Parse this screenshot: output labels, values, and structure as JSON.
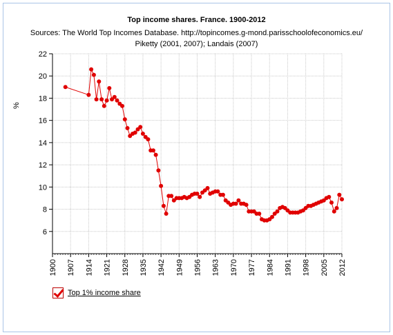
{
  "chart_data": {
    "type": "line",
    "title": "Top income shares. France. 1900-2012",
    "subtitle_lines": [
      "Sources: The World Top Incomes Database. http://topincomes.g-mond.parisschoolofeconomics.eu/",
      "Piketty (2001, 2007); Landais (2007)"
    ],
    "ylabel": "%",
    "xlabel": "",
    "xlim": [
      1900,
      2012
    ],
    "ylim": [
      4,
      22
    ],
    "y_ticks": [
      6,
      8,
      10,
      12,
      14,
      16,
      18,
      20,
      22
    ],
    "x_ticks": [
      1900,
      1907,
      1914,
      1921,
      1928,
      1935,
      1942,
      1949,
      1956,
      1963,
      1970,
      1977,
      1984,
      1991,
      1998,
      2005,
      2012
    ],
    "grid": true,
    "series": [
      {
        "name": "Top 1% income share",
        "color": "#e00000",
        "points": [
          [
            1905,
            19.0
          ],
          [
            1914,
            18.3
          ],
          [
            1915,
            20.6
          ],
          [
            1916,
            20.1
          ],
          [
            1917,
            17.9
          ],
          [
            1918,
            19.5
          ],
          [
            1919,
            17.9
          ],
          [
            1920,
            17.3
          ],
          [
            1921,
            17.8
          ],
          [
            1922,
            18.9
          ],
          [
            1923,
            17.9
          ],
          [
            1924,
            18.1
          ],
          [
            1925,
            17.8
          ],
          [
            1926,
            17.5
          ],
          [
            1927,
            17.3
          ],
          [
            1928,
            16.1
          ],
          [
            1929,
            15.3
          ],
          [
            1930,
            14.6
          ],
          [
            1931,
            14.8
          ],
          [
            1932,
            14.9
          ],
          [
            1933,
            15.2
          ],
          [
            1934,
            15.4
          ],
          [
            1935,
            14.8
          ],
          [
            1936,
            14.5
          ],
          [
            1937,
            14.3
          ],
          [
            1938,
            13.3
          ],
          [
            1939,
            13.3
          ],
          [
            1940,
            12.9
          ],
          [
            1941,
            11.5
          ],
          [
            1942,
            10.1
          ],
          [
            1943,
            8.3
          ],
          [
            1944,
            7.6
          ],
          [
            1945,
            9.2
          ],
          [
            1946,
            9.2
          ],
          [
            1947,
            8.8
          ],
          [
            1948,
            9.0
          ],
          [
            1949,
            9.0
          ],
          [
            1950,
            9.0
          ],
          [
            1951,
            9.1
          ],
          [
            1952,
            9.0
          ],
          [
            1953,
            9.1
          ],
          [
            1954,
            9.3
          ],
          [
            1955,
            9.4
          ],
          [
            1956,
            9.4
          ],
          [
            1957,
            9.1
          ],
          [
            1958,
            9.5
          ],
          [
            1959,
            9.7
          ],
          [
            1960,
            9.9
          ],
          [
            1961,
            9.4
          ],
          [
            1962,
            9.5
          ],
          [
            1963,
            9.6
          ],
          [
            1964,
            9.6
          ],
          [
            1965,
            9.3
          ],
          [
            1966,
            9.3
          ],
          [
            1967,
            8.8
          ],
          [
            1968,
            8.6
          ],
          [
            1969,
            8.4
          ],
          [
            1970,
            8.5
          ],
          [
            1971,
            8.5
          ],
          [
            1972,
            8.8
          ],
          [
            1973,
            8.5
          ],
          [
            1974,
            8.5
          ],
          [
            1975,
            8.4
          ],
          [
            1976,
            7.8
          ],
          [
            1977,
            7.8
          ],
          [
            1978,
            7.8
          ],
          [
            1979,
            7.6
          ],
          [
            1980,
            7.6
          ],
          [
            1981,
            7.1
          ],
          [
            1982,
            7.0
          ],
          [
            1983,
            7.0
          ],
          [
            1984,
            7.1
          ],
          [
            1985,
            7.3
          ],
          [
            1986,
            7.6
          ],
          [
            1987,
            7.8
          ],
          [
            1988,
            8.1
          ],
          [
            1989,
            8.2
          ],
          [
            1990,
            8.1
          ],
          [
            1991,
            7.9
          ],
          [
            1992,
            7.7
          ],
          [
            1993,
            7.7
          ],
          [
            1994,
            7.7
          ],
          [
            1995,
            7.7
          ],
          [
            1996,
            7.8
          ],
          [
            1997,
            7.9
          ],
          [
            1998,
            8.1
          ],
          [
            1999,
            8.3
          ],
          [
            2000,
            8.3
          ],
          [
            2001,
            8.4
          ],
          [
            2002,
            8.5
          ],
          [
            2003,
            8.6
          ],
          [
            2004,
            8.7
          ],
          [
            2005,
            8.8
          ],
          [
            2006,
            9.0
          ],
          [
            2007,
            9.1
          ],
          [
            2008,
            8.6
          ],
          [
            2009,
            7.8
          ],
          [
            2010,
            8.1
          ],
          [
            2011,
            9.3
          ],
          [
            2012,
            8.9
          ]
        ]
      }
    ]
  },
  "legend": {
    "label": "Top 1% income share",
    "checked": true
  }
}
